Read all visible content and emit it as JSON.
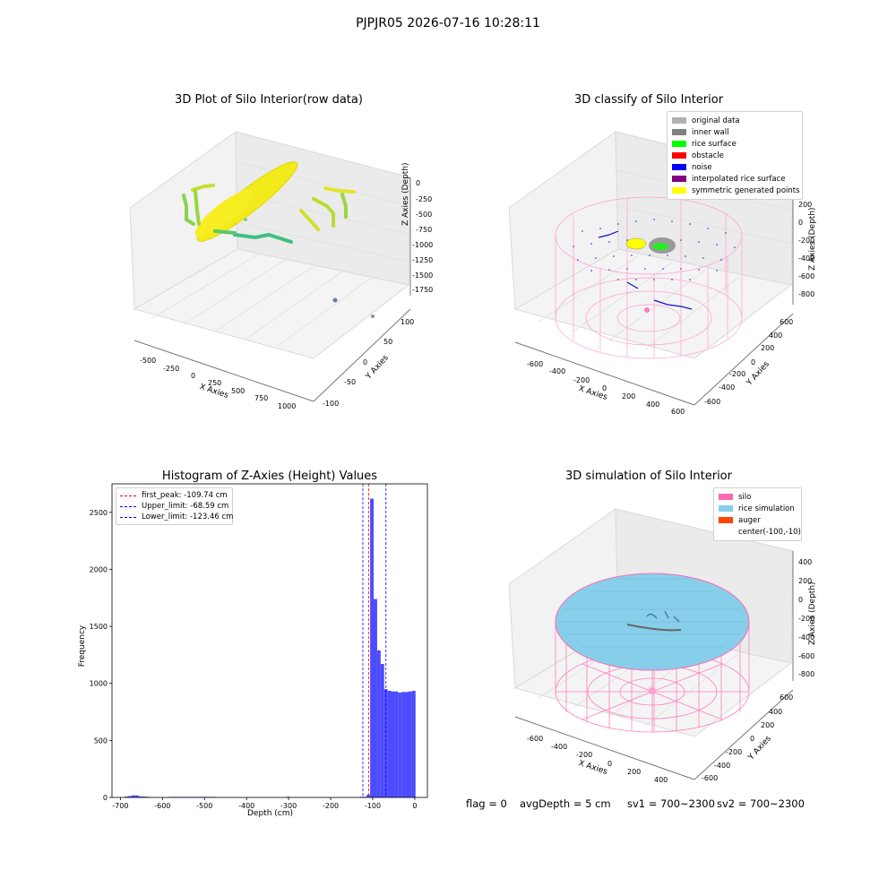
{
  "suptitle": "PJPJR05 2026-07-16 10:28:11",
  "panels": {
    "raw": {
      "title": "3D Plot of Silo Interior(row data)",
      "xlabel": "X Axies",
      "ylabel": "Y Axies",
      "zlabel": "Z Axies (Depth)",
      "xticks": [
        "-500",
        "-250",
        "0",
        "250",
        "500",
        "750",
        "1000"
      ],
      "yticks": [
        "-100",
        "-50",
        "0",
        "50",
        "100"
      ],
      "zticks": [
        "0",
        "-250",
        "-500",
        "-750",
        "-1000",
        "-1250",
        "-1500",
        "-1750"
      ]
    },
    "classify": {
      "title": "3D classify of Silo Interior",
      "xlabel": "X Axies",
      "ylabel": "Y Axies",
      "zlabel": "Z Axies (Depth)",
      "xticks": [
        "-600",
        "-400",
        "-200",
        "0",
        "200",
        "400",
        "600"
      ],
      "yticks": [
        "-600",
        "-400",
        "-200",
        "0",
        "200",
        "400",
        "600"
      ],
      "zticks": [
        "200",
        "0",
        "-200",
        "-400",
        "-600",
        "-800"
      ],
      "legend": [
        {
          "label": "original data",
          "color": "#b0b0b0"
        },
        {
          "label": "inner wall",
          "color": "#808080"
        },
        {
          "label": "rice surface",
          "color": "#00ff00"
        },
        {
          "label": "obstacle",
          "color": "#ff0000"
        },
        {
          "label": "noise",
          "color": "#0000ff"
        },
        {
          "label": "interpolated rice surface",
          "color": "#800080"
        },
        {
          "label": "symmetric generated points",
          "color": "#ffff00"
        }
      ]
    },
    "simulation": {
      "title": "3D simulation of Silo Interior",
      "xlabel": "X Axies",
      "ylabel": "Y Axies",
      "zlabel": "Z Axies (Depth)",
      "xticks": [
        "-600",
        "-400",
        "-200",
        "0",
        "200",
        "400"
      ],
      "yticks": [
        "-600",
        "-400",
        "-200",
        "0",
        "200",
        "400",
        "600"
      ],
      "zticks": [
        "400",
        "200",
        "0",
        "-200",
        "-400",
        "-600",
        "-800"
      ],
      "legend": [
        {
          "label": "silo",
          "color": "#ff69b4"
        },
        {
          "label": "rice simulation",
          "color": "#87ceeb"
        },
        {
          "label": "auger",
          "color": "#ff4500"
        },
        {
          "label": "center(-100,-10)",
          "color": ""
        }
      ]
    }
  },
  "status": {
    "flag": "flag = 0",
    "avg_depth": "avgDepth = 5 cm",
    "sv1": "sv1 = 700~2300",
    "sv2": "sv2 = 700~2300"
  },
  "chart_data": [
    {
      "type": "bar",
      "title": "Histogram of Z-Axies (Height) Values",
      "xlabel": "Depth (cm)",
      "ylabel": "Frequency",
      "xlim": [
        -720,
        30
      ],
      "ylim": [
        0,
        2750
      ],
      "xticks": [
        -700,
        -600,
        -500,
        -400,
        -300,
        -200,
        -100,
        0
      ],
      "yticks": [
        0,
        500,
        1000,
        1500,
        2000,
        2500
      ],
      "bar_color": "#4b4bff",
      "bin_width": 8.3,
      "bins": [
        {
          "x": -690,
          "v": 8
        },
        {
          "x": -681.7,
          "v": 12
        },
        {
          "x": -673.4,
          "v": 18
        },
        {
          "x": -665.1,
          "v": 18
        },
        {
          "x": -656.8,
          "v": 10
        },
        {
          "x": -648.5,
          "v": 8
        },
        {
          "x": -640.2,
          "v": 6
        },
        {
          "x": -632,
          "v": 3
        },
        {
          "x": -623.7,
          "v": 3
        },
        {
          "x": -590,
          "v": 4
        },
        {
          "x": -581.7,
          "v": 5
        },
        {
          "x": -573.4,
          "v": 5
        },
        {
          "x": -565.1,
          "v": 5
        },
        {
          "x": -556.8,
          "v": 5
        },
        {
          "x": -548.5,
          "v": 5
        },
        {
          "x": -540.2,
          "v": 5
        },
        {
          "x": -531.9,
          "v": 5
        },
        {
          "x": -523.6,
          "v": 5
        },
        {
          "x": -515.3,
          "v": 5
        },
        {
          "x": -507,
          "v": 5
        },
        {
          "x": -498.7,
          "v": 5
        },
        {
          "x": -490.4,
          "v": 5
        },
        {
          "x": -482.1,
          "v": 5
        },
        {
          "x": -440,
          "v": 2
        },
        {
          "x": -420,
          "v": 2
        },
        {
          "x": -380,
          "v": 2
        },
        {
          "x": -350,
          "v": 2
        },
        {
          "x": -305,
          "v": 6
        },
        {
          "x": -210,
          "v": 2
        },
        {
          "x": -160,
          "v": 2
        },
        {
          "x": -131,
          "v": 6
        },
        {
          "x": -122.7,
          "v": 6
        },
        {
          "x": -114.4,
          "v": 25
        },
        {
          "x": -106.1,
          "v": 2620
        },
        {
          "x": -97.8,
          "v": 1740
        },
        {
          "x": -89.5,
          "v": 1290
        },
        {
          "x": -81.2,
          "v": 1170
        },
        {
          "x": -72.9,
          "v": 950
        },
        {
          "x": -64.6,
          "v": 935
        },
        {
          "x": -56.3,
          "v": 930
        },
        {
          "x": -48,
          "v": 930
        },
        {
          "x": -39.7,
          "v": 920
        },
        {
          "x": -31.4,
          "v": 925
        },
        {
          "x": -23.1,
          "v": 925
        },
        {
          "x": -14.8,
          "v": 930
        },
        {
          "x": -6.5,
          "v": 935
        }
      ],
      "vlines": [
        {
          "x": -109.74,
          "label": "first_peak: -109.74 cm",
          "color": "#ff0000"
        },
        {
          "x": -68.59,
          "label": "Upper_limit: -68.59 cm",
          "color": "#0000ff"
        },
        {
          "x": -123.46,
          "label": "Lower_limit: -123.46 cm",
          "color": "#0000ff"
        }
      ]
    }
  ]
}
